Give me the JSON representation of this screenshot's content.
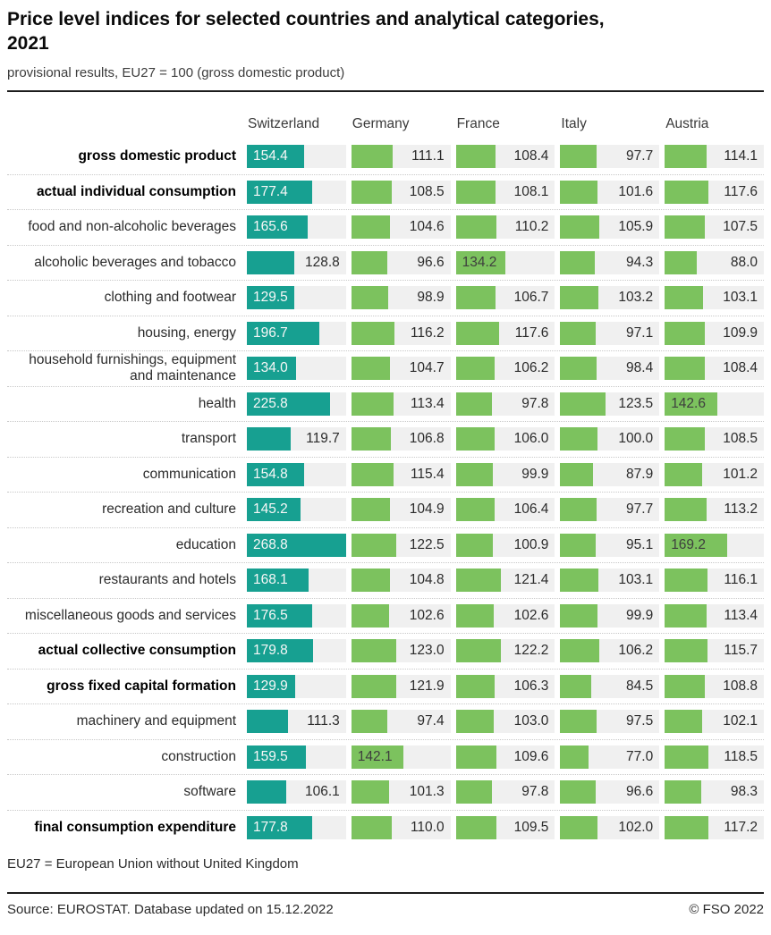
{
  "header": {
    "title_line1": "Price level indices for selected countries and analytical categories,",
    "title_line2": "2021",
    "subtitle": "provisional results, EU27 = 100 (gross domestic product)"
  },
  "chart_data": {
    "type": "bar",
    "title": "Price level indices for selected countries and analytical categories, 2021",
    "subtitle": "provisional results, EU27 = 100 (gross domestic product)",
    "orientation": "horizontal",
    "columns": [
      "Switzerland",
      "Germany",
      "France",
      "Italy",
      "Austria"
    ],
    "scale_max": 268.8,
    "highlight_column": "Switzerland",
    "colors": {
      "switzerland_bar": "#17a091",
      "comparison_bar": "#7cc25e",
      "track": "#f0f0f0"
    },
    "rows": [
      {
        "label": "gross domestic product",
        "bold": true,
        "values": [
          154.4,
          111.1,
          108.4,
          97.7,
          114.1
        ]
      },
      {
        "label": "actual individual consumption",
        "bold": true,
        "values": [
          177.4,
          108.5,
          108.1,
          101.6,
          117.6
        ]
      },
      {
        "label": "food and non-alcoholic beverages",
        "bold": false,
        "values": [
          165.6,
          104.6,
          110.2,
          105.9,
          107.5
        ]
      },
      {
        "label": "alcoholic beverages and tobacco",
        "bold": false,
        "values": [
          128.8,
          96.6,
          134.2,
          94.3,
          88.0
        ]
      },
      {
        "label": "clothing and footwear",
        "bold": false,
        "values": [
          129.5,
          98.9,
          106.7,
          103.2,
          103.1
        ]
      },
      {
        "label": "housing, energy",
        "bold": false,
        "values": [
          196.7,
          116.2,
          117.6,
          97.1,
          109.9
        ]
      },
      {
        "label": "household furnishings, equipment",
        "label2": "and maintenance",
        "bold": false,
        "values": [
          134.0,
          104.7,
          106.2,
          98.4,
          108.4
        ]
      },
      {
        "label": "health",
        "bold": false,
        "values": [
          225.8,
          113.4,
          97.8,
          123.5,
          142.6
        ]
      },
      {
        "label": "transport",
        "bold": false,
        "values": [
          119.7,
          106.8,
          106.0,
          100.0,
          108.5
        ]
      },
      {
        "label": "communication",
        "bold": false,
        "values": [
          154.8,
          115.4,
          99.9,
          87.9,
          101.2
        ]
      },
      {
        "label": "recreation and culture",
        "bold": false,
        "values": [
          145.2,
          104.9,
          106.4,
          97.7,
          113.2
        ]
      },
      {
        "label": "education",
        "bold": false,
        "values": [
          268.8,
          122.5,
          100.9,
          95.1,
          169.2
        ]
      },
      {
        "label": "restaurants and hotels",
        "bold": false,
        "values": [
          168.1,
          104.8,
          121.4,
          103.1,
          116.1
        ]
      },
      {
        "label": "miscellaneous goods and services",
        "bold": false,
        "values": [
          176.5,
          102.6,
          102.6,
          99.9,
          113.4
        ]
      },
      {
        "label": "actual collective consumption",
        "bold": true,
        "values": [
          179.8,
          123.0,
          122.2,
          106.2,
          115.7
        ]
      },
      {
        "label": "gross fixed capital formation",
        "bold": true,
        "values": [
          129.9,
          121.9,
          106.3,
          84.5,
          108.8
        ]
      },
      {
        "label": "machinery and equipment",
        "bold": false,
        "values": [
          111.3,
          97.4,
          103.0,
          97.5,
          102.1
        ]
      },
      {
        "label": "construction",
        "bold": false,
        "values": [
          159.5,
          142.1,
          109.6,
          77.0,
          118.5
        ]
      },
      {
        "label": "software",
        "bold": false,
        "values": [
          106.1,
          101.3,
          97.8,
          96.6,
          98.3
        ]
      },
      {
        "label": "final consumption expenditure",
        "bold": true,
        "values": [
          177.8,
          110.0,
          109.5,
          102.0,
          117.2
        ]
      }
    ]
  },
  "footnote": "EU27 = European Union without United Kingdom",
  "footer": {
    "source": "Source: EUROSTAT. Database updated on 15.12.2022",
    "copyright": "© FSO 2022"
  }
}
